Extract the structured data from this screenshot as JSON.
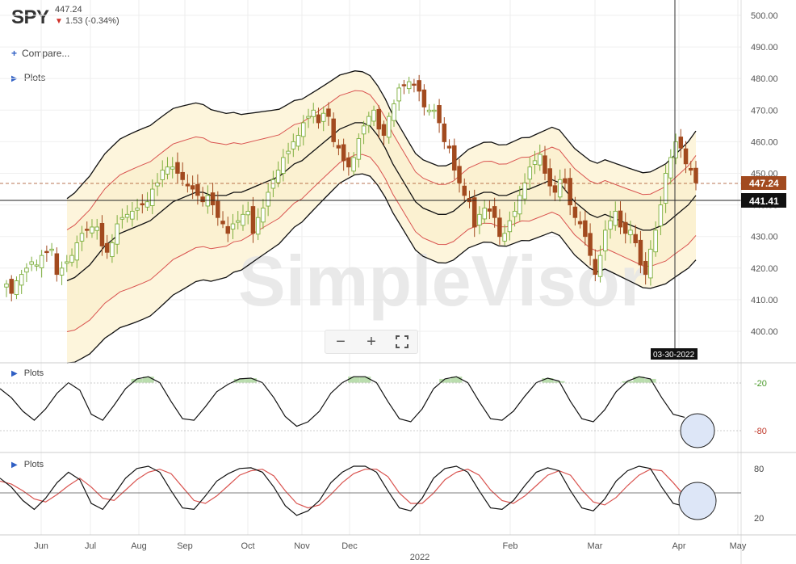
{
  "header": {
    "symbol": "SPY",
    "last_price": "447.24",
    "change": "1.53 (-0.34%)",
    "change_arrow": "▼"
  },
  "side": {
    "compare_icon": "plus-icon",
    "compare_label": "Compare...",
    "plots_icon": "triangle-right-icon",
    "plots_label": "Plots"
  },
  "watermark": "SimpleVisor",
  "zoom": {
    "minus": "−",
    "plus": "+",
    "fullscreen_icon": "expand-icon"
  },
  "crosshair": {
    "date_label": "03-30-2022",
    "price_label": "441.41"
  },
  "price_tag": "447.24",
  "panels": {
    "osc1_label": "Plots",
    "osc2_label": "Plots"
  },
  "colors": {
    "up": "#7cae3c",
    "down": "#a24a1f",
    "bb_fill": "#fdf7e0",
    "bb_line": "#111111",
    "inner_band": "#d9534f",
    "pos_fill": "#a9d49a",
    "neg_fill": "#e8a0a0"
  },
  "chart_data": [
    {
      "type": "candlestick",
      "y_ticks": [
        "500.00",
        "490.00",
        "480.00",
        "470.00",
        "460.00",
        "450.00",
        "440.00",
        "430.00",
        "420.00",
        "410.00",
        "400.00"
      ],
      "ylim": [
        396,
        502
      ],
      "x_ticks": [
        "Jun",
        "Jul",
        "Aug",
        "Sep",
        "Oct",
        "Nov",
        "Dec",
        "2022",
        "Feb",
        "Mar",
        "Apr",
        "May"
      ],
      "series": [
        {
          "name": "close",
          "values": [
            415,
            412,
            416,
            418,
            420,
            422,
            421,
            424,
            425,
            426,
            418,
            420,
            422,
            424,
            428,
            431,
            432,
            433,
            433,
            427,
            425,
            428,
            434,
            436,
            437,
            438,
            439,
            440,
            441,
            445,
            447,
            451,
            452,
            452,
            450,
            448,
            446,
            445,
            443,
            441,
            443,
            440,
            436,
            434,
            431,
            434,
            435,
            437,
            438,
            431,
            436,
            439,
            444,
            448,
            451,
            455,
            457,
            460,
            462,
            466,
            468,
            470,
            466,
            469,
            468,
            460,
            458,
            454,
            452,
            455,
            461,
            465,
            468,
            470,
            464,
            462,
            468,
            472,
            477,
            478,
            479,
            478,
            476,
            471,
            470,
            470,
            466,
            460,
            458,
            451,
            447,
            443,
            441,
            433,
            437,
            439,
            438,
            436,
            430,
            431,
            435,
            438,
            443,
            447,
            452,
            454,
            456,
            450,
            446,
            444,
            448,
            447,
            440,
            436,
            434,
            430,
            424,
            418,
            424,
            432,
            435,
            438,
            433,
            431,
            432,
            428,
            421,
            418,
            426,
            432,
            440,
            450,
            455,
            460,
            458,
            453,
            451,
            447
          ]
        },
        {
          "name": "bb_mid",
          "values": [
            416,
            417,
            419,
            421,
            424,
            427,
            429,
            431,
            432,
            433,
            434,
            435,
            437,
            439,
            441,
            442,
            443,
            444,
            444,
            443,
            443,
            443,
            444,
            444,
            445,
            446,
            447,
            448,
            449,
            451,
            453,
            454,
            456,
            458,
            460,
            462,
            464,
            465,
            466,
            466,
            465,
            462,
            458,
            453,
            449,
            445,
            441,
            439,
            438,
            437,
            437,
            438,
            440,
            442,
            443,
            444,
            444,
            443,
            443,
            444,
            445,
            445,
            446,
            447,
            448,
            447,
            444,
            441,
            439,
            437,
            436,
            437,
            436,
            435,
            434,
            433,
            432,
            432,
            433,
            434,
            436,
            438,
            440,
            443
          ]
        },
        {
          "name": "osc_fast",
          "values": [
            72,
            60,
            42,
            30,
            45,
            66,
            80,
            70,
            38,
            30,
            50,
            72,
            85,
            88,
            80,
            55,
            32,
            30,
            48,
            68,
            78,
            85,
            86,
            80,
            60,
            35,
            22,
            28,
            42,
            66,
            80,
            88,
            88,
            80,
            55,
            32,
            28,
            45,
            72,
            85,
            88,
            80,
            55,
            32,
            30,
            42,
            62,
            80,
            86,
            82,
            55,
            32,
            28,
            44,
            68,
            82,
            88,
            85,
            60,
            38,
            34
          ]
        },
        {
          "name": "osc_slow",
          "values": [
            68,
            64,
            55,
            44,
            40,
            50,
            62,
            72,
            60,
            45,
            42,
            56,
            70,
            80,
            84,
            78,
            60,
            42,
            38,
            48,
            62,
            76,
            82,
            84,
            75,
            55,
            38,
            32,
            36,
            50,
            66,
            78,
            84,
            84,
            74,
            52,
            38,
            38,
            52,
            70,
            80,
            84,
            76,
            56,
            42,
            38,
            48,
            62,
            76,
            82,
            76,
            56,
            40,
            36,
            46,
            62,
            76,
            84,
            82,
            66,
            48
          ]
        }
      ]
    }
  ]
}
